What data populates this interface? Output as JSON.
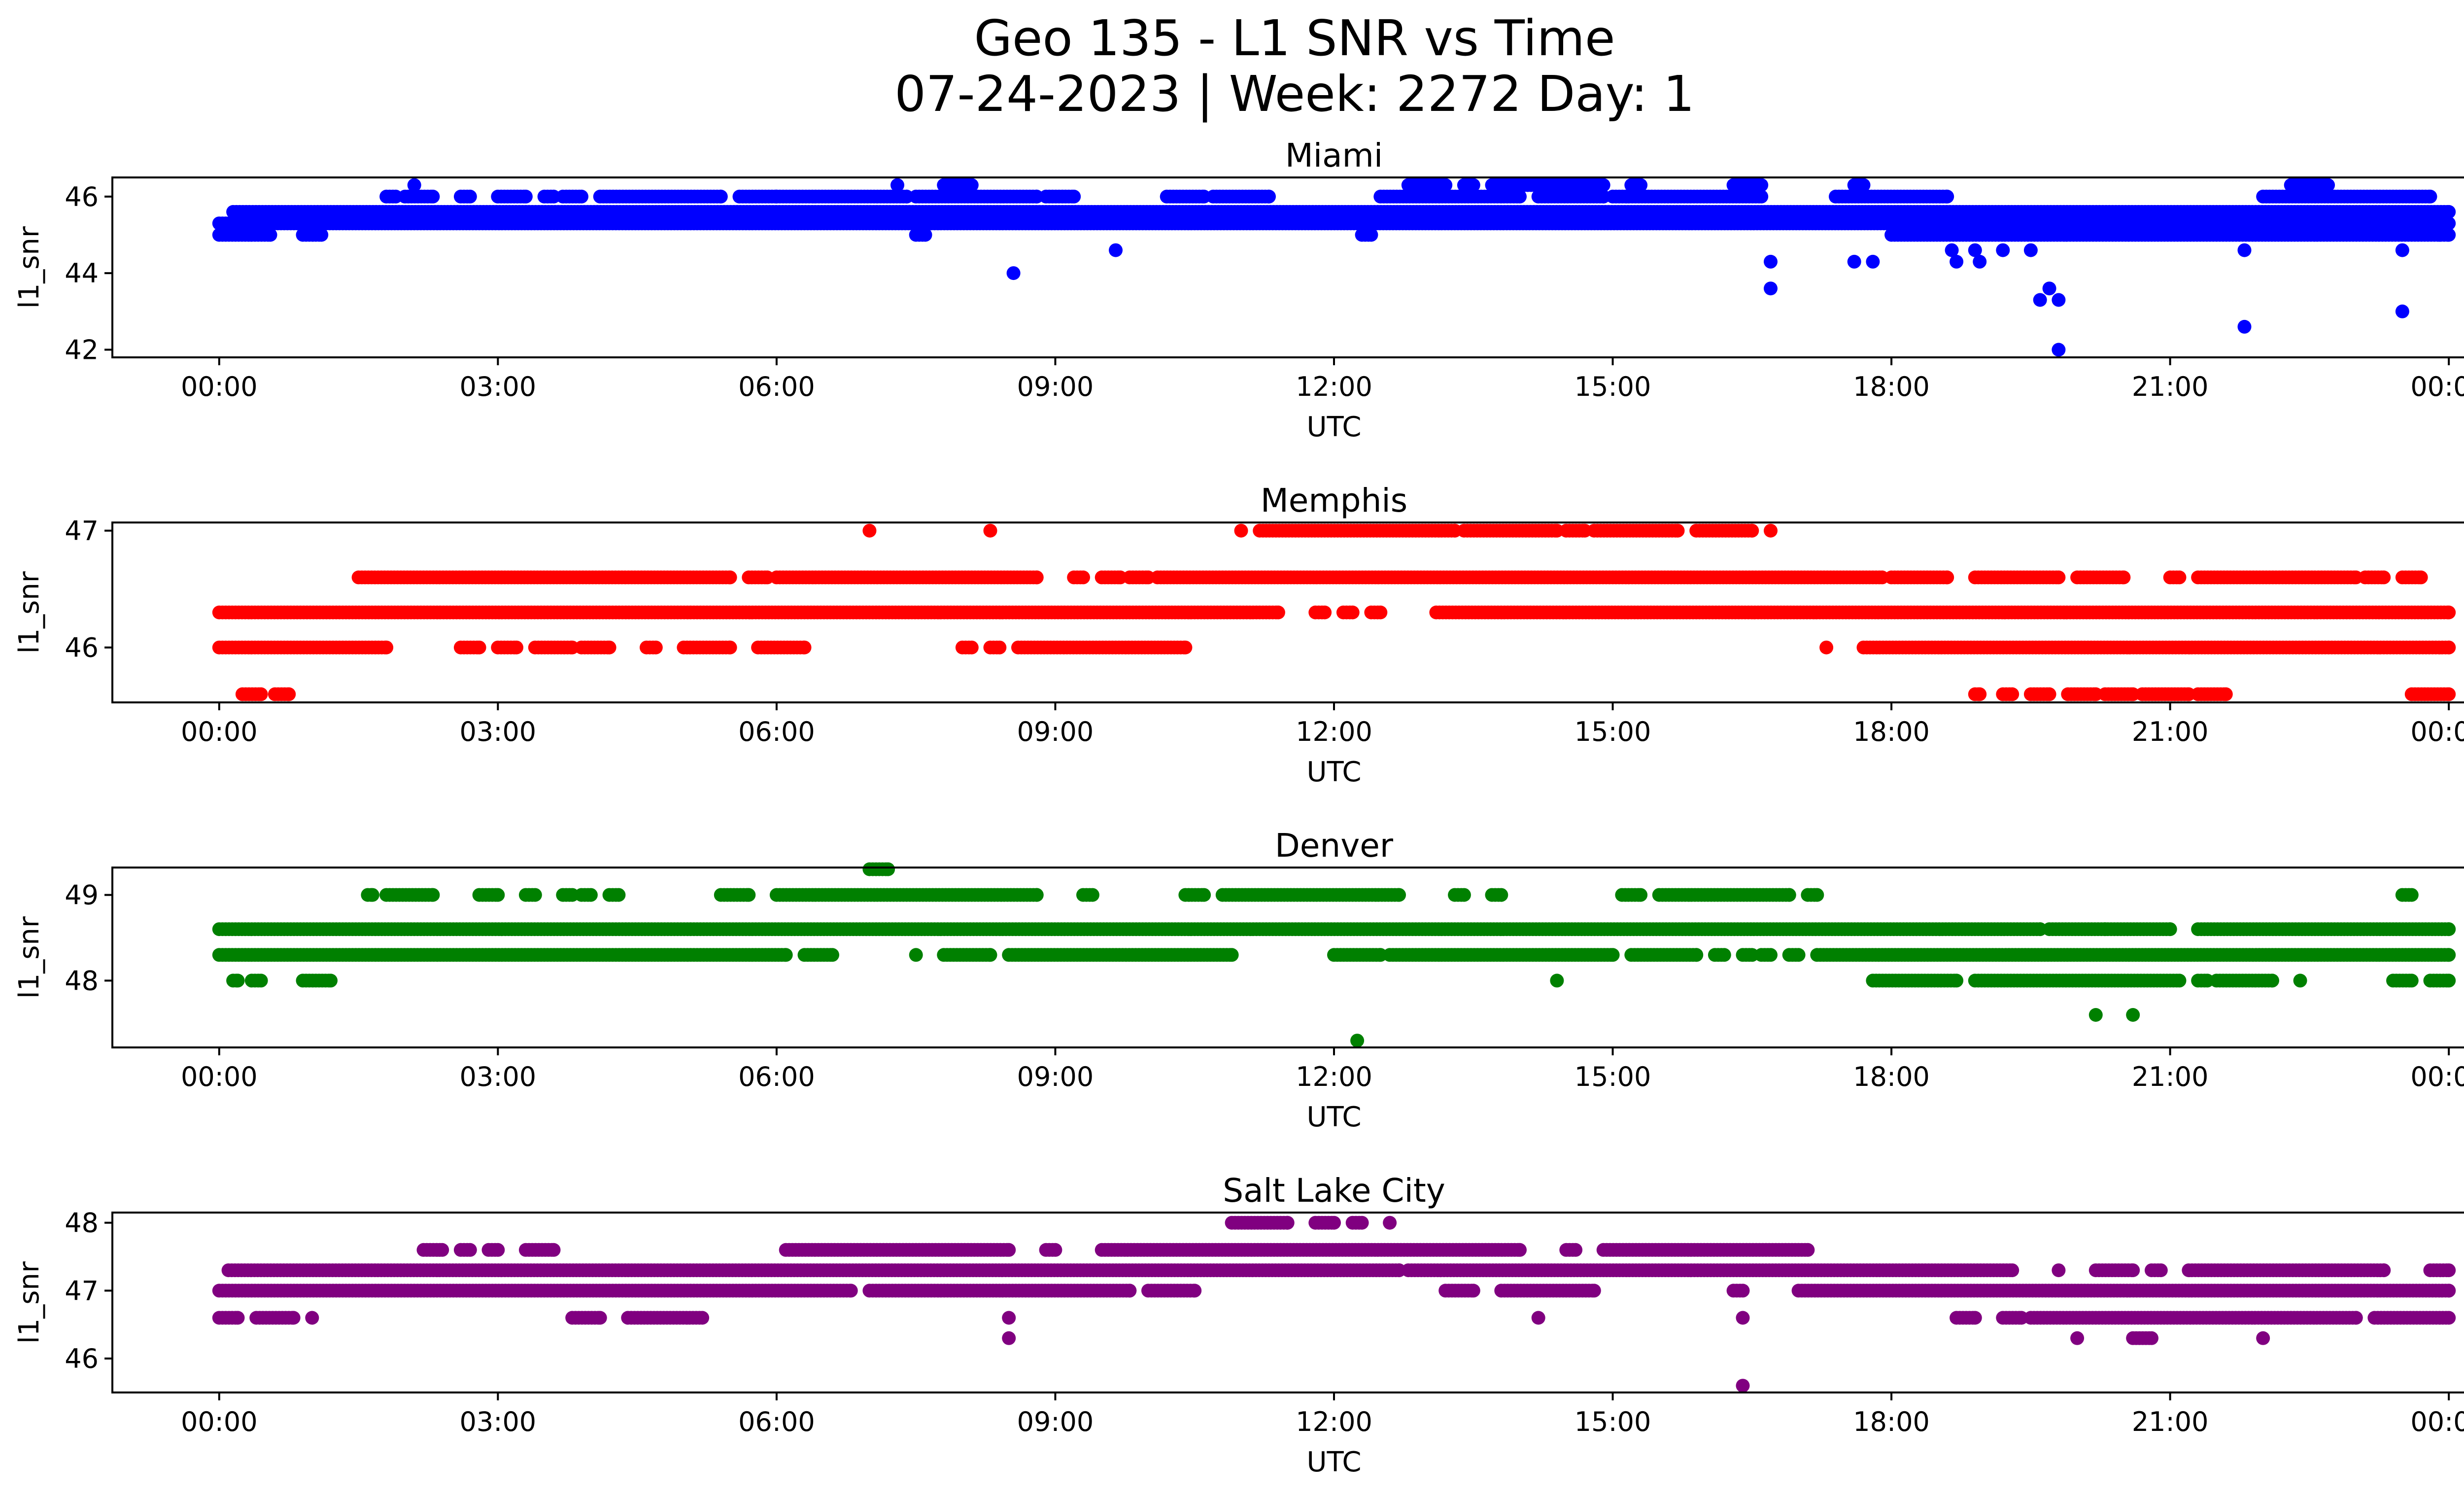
{
  "figure_title": {
    "line1": "Geo 135 - L1 SNR vs Time",
    "line2": "07-24-2023 | Week: 2272 Day: 1"
  },
  "chart_data": [
    {
      "type": "scatter",
      "title": "Miami",
      "xlabel": "UTC",
      "ylabel": "l1_snr",
      "color": "#0000ff",
      "x_unit": "hours UTC (0 = 00:00 on 07-24-2023)",
      "xlim": [
        -1.15,
        25.15
      ],
      "ylim": [
        41.8,
        46.5
      ],
      "x_ticks": [
        "00:00",
        "03:00",
        "06:00",
        "09:00",
        "12:00",
        "15:00",
        "18:00",
        "21:00",
        "00:00"
      ],
      "y_ticks": [
        42,
        44,
        46
      ],
      "bands": [
        {
          "y": 45.0,
          "ranges": [
            [
              0.0,
              0.55
            ],
            [
              0.9,
              1.1
            ],
            [
              7.5,
              7.6
            ],
            [
              12.3,
              12.4
            ],
            [
              18.0,
              24.0
            ]
          ]
        },
        {
          "y": 45.3,
          "ranges": [
            [
              0.0,
              24.0
            ]
          ]
        },
        {
          "y": 45.6,
          "ranges": [
            [
              0.15,
              24.0
            ]
          ]
        },
        {
          "y": 46.0,
          "ranges": [
            [
              1.8,
              1.9
            ],
            [
              2.0,
              2.3
            ],
            [
              2.6,
              2.7
            ],
            [
              3.0,
              3.3
            ],
            [
              3.5,
              3.6
            ],
            [
              3.7,
              3.9
            ],
            [
              4.1,
              5.4
            ],
            [
              5.6,
              6.0
            ],
            [
              6.0,
              7.4
            ],
            [
              7.5,
              8.8
            ],
            [
              8.9,
              9.2
            ],
            [
              10.2,
              10.6
            ],
            [
              10.7,
              11.3
            ],
            [
              12.5,
              14.0
            ],
            [
              14.2,
              14.9
            ],
            [
              15.0,
              16.6
            ],
            [
              17.4,
              18.6
            ],
            [
              22.0,
              23.8
            ]
          ]
        },
        {
          "y": 46.3,
          "ranges": [
            [
              2.1,
              2.1
            ],
            [
              7.3,
              7.3
            ],
            [
              7.8,
              8.1
            ],
            [
              12.8,
              13.2
            ],
            [
              13.4,
              13.5
            ],
            [
              13.7,
              14.9
            ],
            [
              15.2,
              15.3
            ],
            [
              16.3,
              16.6
            ],
            [
              17.6,
              17.7
            ],
            [
              22.3,
              22.7
            ]
          ]
        }
      ],
      "outliers": [
        [
          8.55,
          44.0
        ],
        [
          9.65,
          44.6
        ],
        [
          16.7,
          44.3
        ],
        [
          16.7,
          43.6
        ],
        [
          17.6,
          44.3
        ],
        [
          17.8,
          44.3
        ],
        [
          18.65,
          44.6
        ],
        [
          18.7,
          44.3
        ],
        [
          18.9,
          44.6
        ],
        [
          18.95,
          44.3
        ],
        [
          19.2,
          44.6
        ],
        [
          19.5,
          44.6
        ],
        [
          19.6,
          43.3
        ],
        [
          19.7,
          43.6
        ],
        [
          19.8,
          43.3
        ],
        [
          19.8,
          42.0
        ],
        [
          21.8,
          44.6
        ],
        [
          21.8,
          42.6
        ],
        [
          23.5,
          43.0
        ],
        [
          23.5,
          44.6
        ],
        [
          23.9,
          45.0
        ]
      ]
    },
    {
      "type": "scatter",
      "title": "Memphis",
      "xlabel": "UTC",
      "ylabel": "l1_snr",
      "color": "#ff0000",
      "x_unit": "hours UTC (0 = 00:00 on 07-24-2023)",
      "xlim": [
        -1.15,
        25.15
      ],
      "ylim": [
        45.53,
        47.07
      ],
      "x_ticks": [
        "00:00",
        "03:00",
        "06:00",
        "09:00",
        "12:00",
        "15:00",
        "18:00",
        "21:00",
        "00:00"
      ],
      "y_ticks": [
        46,
        47
      ],
      "bands": [
        {
          "y": 45.6,
          "ranges": [
            [
              0.25,
              0.45
            ],
            [
              0.6,
              0.75
            ],
            [
              18.9,
              18.95
            ],
            [
              19.2,
              19.3
            ],
            [
              19.5,
              19.7
            ],
            [
              19.9,
              20.2
            ],
            [
              20.3,
              20.6
            ],
            [
              20.7,
              21.2
            ],
            [
              21.3,
              21.6
            ],
            [
              23.6,
              24.0
            ]
          ]
        },
        {
          "y": 46.0,
          "ranges": [
            [
              0.0,
              1.8
            ],
            [
              2.6,
              2.8
            ],
            [
              3.0,
              3.2
            ],
            [
              3.4,
              3.8
            ],
            [
              3.9,
              4.2
            ],
            [
              4.6,
              4.7
            ],
            [
              5.0,
              5.5
            ],
            [
              5.8,
              6.3
            ],
            [
              8.0,
              8.1
            ],
            [
              8.3,
              8.4
            ],
            [
              8.6,
              10.4
            ],
            [
              17.3,
              17.3
            ],
            [
              17.7,
              24.0
            ]
          ]
        },
        {
          "y": 46.3,
          "ranges": [
            [
              0.0,
              11.4
            ],
            [
              11.8,
              11.9
            ],
            [
              12.1,
              12.2
            ],
            [
              12.4,
              12.5
            ],
            [
              13.1,
              24.0
            ]
          ]
        },
        {
          "y": 46.6,
          "ranges": [
            [
              1.5,
              5.5
            ],
            [
              5.7,
              5.9
            ],
            [
              6.0,
              8.8
            ],
            [
              9.2,
              9.3
            ],
            [
              9.5,
              9.7
            ],
            [
              9.8,
              10.0
            ],
            [
              10.1,
              17.9
            ],
            [
              18.0,
              18.6
            ],
            [
              18.9,
              19.8
            ],
            [
              20.0,
              20.5
            ],
            [
              21.0,
              21.1
            ],
            [
              21.3,
              23.0
            ],
            [
              23.1,
              23.3
            ],
            [
              23.5,
              23.7
            ]
          ]
        },
        {
          "y": 47.0,
          "ranges": [
            [
              7.0,
              7.0
            ],
            [
              8.3,
              8.3
            ],
            [
              11.0,
              11.0
            ],
            [
              11.2,
              13.3
            ],
            [
              13.4,
              14.4
            ],
            [
              14.5,
              14.7
            ],
            [
              14.8,
              15.7
            ],
            [
              15.9,
              16.5
            ],
            [
              16.7,
              16.7
            ]
          ]
        }
      ],
      "outliers": []
    },
    {
      "type": "scatter",
      "title": "Denver",
      "xlabel": "UTC",
      "ylabel": "l1_snr",
      "color": "#008000",
      "x_unit": "hours UTC (0 = 00:00 on 07-24-2023)",
      "xlim": [
        -1.15,
        25.15
      ],
      "ylim": [
        47.22,
        49.32
      ],
      "x_ticks": [
        "00:00",
        "03:00",
        "06:00",
        "09:00",
        "12:00",
        "15:00",
        "18:00",
        "21:00",
        "00:00"
      ],
      "y_ticks": [
        48,
        49
      ],
      "bands": [
        {
          "y": 48.0,
          "ranges": [
            [
              0.15,
              0.2
            ],
            [
              0.35,
              0.45
            ],
            [
              0.9,
              1.2
            ],
            [
              14.4,
              14.4
            ],
            [
              17.8,
              18.7
            ],
            [
              18.9,
              21.1
            ],
            [
              21.3,
              21.4
            ],
            [
              21.5,
              22.1
            ],
            [
              22.4,
              22.4
            ],
            [
              23.4,
              23.6
            ],
            [
              23.8,
              24.0
            ]
          ]
        },
        {
          "y": 48.3,
          "ranges": [
            [
              0.0,
              6.1
            ],
            [
              6.3,
              6.6
            ],
            [
              7.5,
              7.5
            ],
            [
              7.8,
              8.3
            ],
            [
              8.5,
              10.9
            ],
            [
              12.0,
              12.5
            ],
            [
              12.6,
              15.0
            ],
            [
              15.2,
              15.9
            ],
            [
              16.1,
              16.2
            ],
            [
              16.4,
              16.5
            ],
            [
              16.6,
              16.7
            ],
            [
              16.9,
              17.0
            ],
            [
              17.2,
              24.0
            ]
          ]
        },
        {
          "y": 48.6,
          "ranges": [
            [
              0.0,
              19.6
            ],
            [
              19.7,
              21.0
            ],
            [
              21.3,
              24.0
            ]
          ]
        },
        {
          "y": 49.0,
          "ranges": [
            [
              1.6,
              1.65
            ],
            [
              1.8,
              2.3
            ],
            [
              2.8,
              3.0
            ],
            [
              3.3,
              3.4
            ],
            [
              3.7,
              3.8
            ],
            [
              3.9,
              4.0
            ],
            [
              4.2,
              4.3
            ],
            [
              5.4,
              5.7
            ],
            [
              6.0,
              8.8
            ],
            [
              9.3,
              9.4
            ],
            [
              10.4,
              10.6
            ],
            [
              10.8,
              12.7
            ],
            [
              13.3,
              13.4
            ],
            [
              13.7,
              13.8
            ],
            [
              15.1,
              15.3
            ],
            [
              15.5,
              16.9
            ],
            [
              17.1,
              17.2
            ],
            [
              23.5,
              23.6
            ]
          ]
        },
        {
          "y": 49.3,
          "ranges": [
            [
              7.0,
              7.2
            ]
          ]
        }
      ],
      "outliers": [
        [
          12.25,
          47.3
        ],
        [
          20.2,
          47.6
        ],
        [
          20.6,
          47.6
        ],
        [
          20.3,
          48.6
        ]
      ]
    },
    {
      "type": "scatter",
      "title": "Salt Lake City",
      "xlabel": "UTC",
      "ylabel": "l1_snr",
      "color": "#800080",
      "x_unit": "hours UTC (0 = 00:00 on 07-24-2023)",
      "xlim": [
        -1.15,
        25.15
      ],
      "ylim": [
        45.5,
        48.15
      ],
      "x_ticks": [
        "00:00",
        "03:00",
        "06:00",
        "09:00",
        "12:00",
        "15:00",
        "18:00",
        "21:00",
        "00:00"
      ],
      "y_ticks": [
        46,
        47,
        48
      ],
      "bands": [
        {
          "y": 46.3,
          "ranges": [
            [
              8.5,
              8.5
            ],
            [
              20.0,
              20.0
            ],
            [
              20.6,
              20.8
            ],
            [
              22.0,
              22.0
            ]
          ]
        },
        {
          "y": 46.6,
          "ranges": [
            [
              0.0,
              0.2
            ],
            [
              0.4,
              0.8
            ],
            [
              1.0,
              1.0
            ],
            [
              3.8,
              4.1
            ],
            [
              4.4,
              5.2
            ],
            [
              8.5,
              8.5
            ],
            [
              14.2,
              14.2
            ],
            [
              16.4,
              16.4
            ],
            [
              18.7,
              18.9
            ],
            [
              19.2,
              19.4
            ],
            [
              19.5,
              23.0
            ],
            [
              23.2,
              24.0
            ]
          ]
        },
        {
          "y": 47.0,
          "ranges": [
            [
              0.0,
              6.8
            ],
            [
              7.0,
              9.8
            ],
            [
              10.0,
              10.5
            ],
            [
              13.2,
              13.5
            ],
            [
              13.8,
              14.8
            ],
            [
              16.3,
              16.4
            ],
            [
              17.0,
              24.0
            ]
          ]
        },
        {
          "y": 47.3,
          "ranges": [
            [
              0.1,
              12.7
            ],
            [
              12.8,
              19.3
            ],
            [
              19.8,
              19.8
            ],
            [
              20.2,
              20.6
            ],
            [
              20.8,
              20.9
            ],
            [
              21.2,
              23.3
            ],
            [
              23.8,
              24.0
            ]
          ]
        },
        {
          "y": 47.6,
          "ranges": [
            [
              2.2,
              2.4
            ],
            [
              2.6,
              2.7
            ],
            [
              2.9,
              3.0
            ],
            [
              3.3,
              3.6
            ],
            [
              6.1,
              8.5
            ],
            [
              8.9,
              9.0
            ],
            [
              9.5,
              14.0
            ],
            [
              14.5,
              14.6
            ],
            [
              14.9,
              17.1
            ]
          ]
        },
        {
          "y": 48.0,
          "ranges": [
            [
              10.9,
              11.5
            ],
            [
              11.8,
              12.0
            ],
            [
              12.2,
              12.3
            ],
            [
              12.6,
              12.6
            ]
          ]
        }
      ],
      "outliers": [
        [
          16.4,
          45.6
        ]
      ]
    }
  ]
}
